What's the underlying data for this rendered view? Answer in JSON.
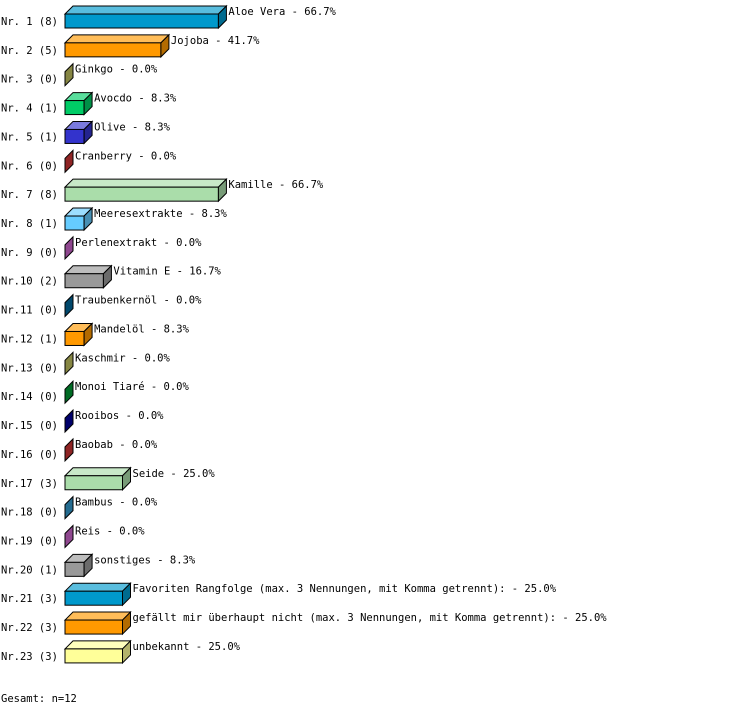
{
  "chart_data": {
    "type": "bar",
    "orientation": "horizontal",
    "style": "3d",
    "unit": "%",
    "xlim": [
      0,
      100
    ],
    "grid": false,
    "rows": [
      {
        "rank": "Nr. 1",
        "count": 8,
        "label": "Aloe Vera",
        "value": 66.7,
        "color": "#0099cc"
      },
      {
        "rank": "Nr. 2",
        "count": 5,
        "label": "Jojoba",
        "value": 41.7,
        "color": "#ff9900"
      },
      {
        "rank": "Nr. 3",
        "count": 0,
        "label": "Ginkgo",
        "value": 0.0,
        "color": "#c0c060"
      },
      {
        "rank": "Nr. 4",
        "count": 1,
        "label": "Avocdo",
        "value": 8.3,
        "color": "#00cc66"
      },
      {
        "rank": "Nr. 5",
        "count": 1,
        "label": "Olive",
        "value": 8.3,
        "color": "#3333cc"
      },
      {
        "rank": "Nr. 6",
        "count": 0,
        "label": "Cranberry",
        "value": 0.0,
        "color": "#cc3333"
      },
      {
        "rank": "Nr. 7",
        "count": 8,
        "label": "Kamille",
        "value": 66.7,
        "color": "#aaddaa"
      },
      {
        "rank": "Nr. 8",
        "count": 1,
        "label": "Meeresextrakte",
        "value": 8.3,
        "color": "#66ccff"
      },
      {
        "rank": "Nr. 9",
        "count": 0,
        "label": "Perlenextrakt",
        "value": 0.0,
        "color": "#cc66cc"
      },
      {
        "rank": "Nr.10",
        "count": 2,
        "label": "Vitamin E",
        "value": 16.7,
        "color": "#999999"
      },
      {
        "rank": "Nr.11",
        "count": 0,
        "label": "Traubenkernöl",
        "value": 0.0,
        "color": "#006699"
      },
      {
        "rank": "Nr.12",
        "count": 1,
        "label": "Mandelöl",
        "value": 8.3,
        "color": "#ff9900"
      },
      {
        "rank": "Nr.13",
        "count": 0,
        "label": "Kaschmir",
        "value": 0.0,
        "color": "#c0c060"
      },
      {
        "rank": "Nr.14",
        "count": 0,
        "label": "Monoi Tiaré",
        "value": 0.0,
        "color": "#009933"
      },
      {
        "rank": "Nr.15",
        "count": 0,
        "label": "Rooibos",
        "value": 0.0,
        "color": "#000099"
      },
      {
        "rank": "Nr.16",
        "count": 0,
        "label": "Baobab",
        "value": 0.0,
        "color": "#cc3333"
      },
      {
        "rank": "Nr.17",
        "count": 3,
        "label": "Seide",
        "value": 25.0,
        "color": "#aaddaa"
      },
      {
        "rank": "Nr.18",
        "count": 0,
        "label": "Bambus",
        "value": 0.0,
        "color": "#3399cc"
      },
      {
        "rank": "Nr.19",
        "count": 0,
        "label": "Reis",
        "value": 0.0,
        "color": "#cc66cc"
      },
      {
        "rank": "Nr.20",
        "count": 1,
        "label": "sonstiges",
        "value": 8.3,
        "color": "#999999"
      },
      {
        "rank": "Nr.21",
        "count": 3,
        "label": "Favoriten Rangfolge (max. 3 Nennungen, mit Komma getrennt):",
        "value": 25.0,
        "color": "#0099cc"
      },
      {
        "rank": "Nr.22",
        "count": 3,
        "label": "gefällt mir überhaupt nicht (max. 3 Nennungen, mit Komma getrennt):",
        "value": 25.0,
        "color": "#ff9900"
      },
      {
        "rank": "Nr.23",
        "count": 3,
        "label": "unbekannt",
        "value": 25.0,
        "color": "#ffff99"
      }
    ],
    "total": "Gesamt: n=12"
  }
}
